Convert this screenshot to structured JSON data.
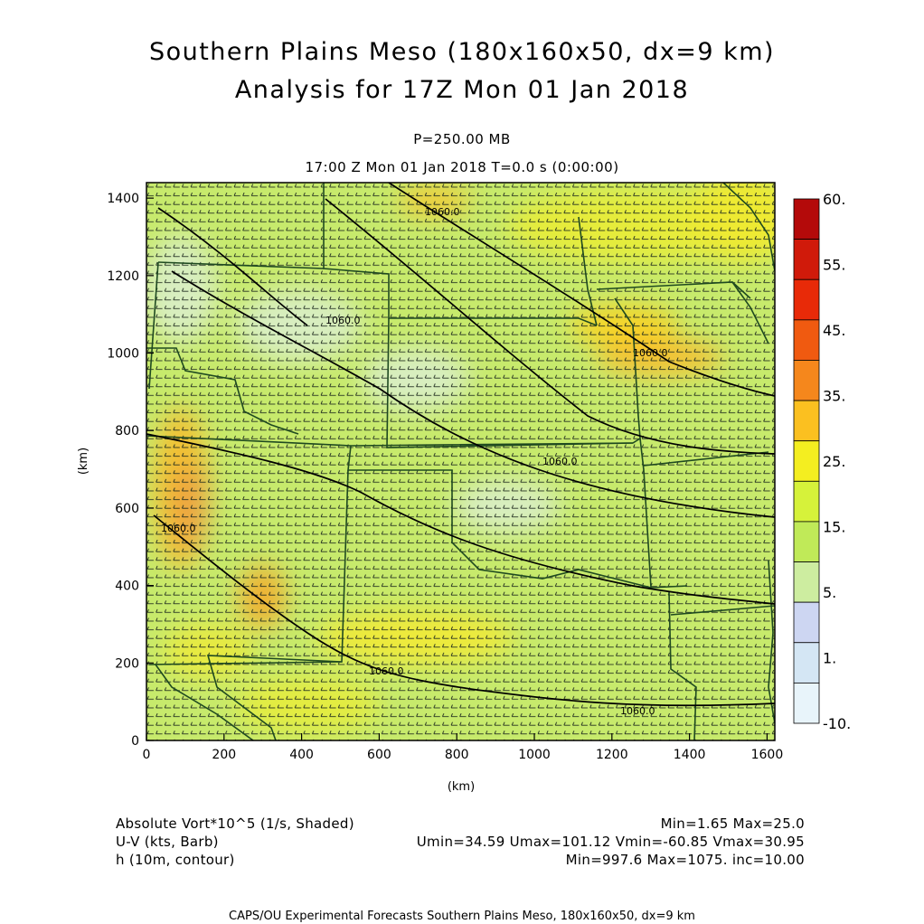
{
  "header": {
    "title_line1": "Southern Plains Meso (180x160x50, dx=9 km)",
    "title_line2": "Analysis for 17Z Mon 01 Jan 2018",
    "level": "P=250.00 MB",
    "time": "17:00 Z Mon 01 Jan 2018    T=0.0 s (0:00:00)"
  },
  "axes": {
    "x_label": "(km)",
    "y_label": "(km)",
    "x_ticks": [
      "0",
      "200",
      "400",
      "600",
      "800",
      "1000",
      "1200",
      "1400",
      "1600"
    ],
    "y_ticks": [
      "0",
      "200",
      "400",
      "600",
      "800",
      "1000",
      "1200",
      "1400"
    ],
    "x_range": [
      0,
      1620
    ],
    "y_range": [
      0,
      1440
    ]
  },
  "colorbar": {
    "labels": [
      "60.",
      "55.",
      "45.",
      "35.",
      "25.",
      "15.",
      "5.",
      "1.",
      "-10."
    ],
    "colors": [
      "#b40a0a",
      "#d01a0a",
      "#e82a08",
      "#f05a10",
      "#f5871c",
      "#fbc020",
      "#f4ee20",
      "#d6f23a",
      "#c0ea58",
      "#cdeda0",
      "#cdd6f2",
      "#d4e6f4",
      "#e8f4fa"
    ]
  },
  "contours": {
    "labels": [
      "1060.0",
      "1060.0",
      "1060.0",
      "1060.0",
      "1060.0",
      "1060.0"
    ]
  },
  "footer": {
    "field1_name": "Absolute Vort*10^5 (1/s, Shaded)",
    "field1_stats": "Min=1.65 Max=25.0",
    "field2_name": "U-V (kts, Barb)",
    "field2_stats": "Umin=34.59 Umax=101.12 Vmin=-60.85 Vmax=30.95",
    "field3_name": "h (10m, contour)",
    "field3_stats": "Min=997.6 Max=1075. inc=10.00",
    "credit": "CAPS/OU Experimental Forecasts  Southern Plains Meso, 180x160x50, dx=9 km"
  }
}
